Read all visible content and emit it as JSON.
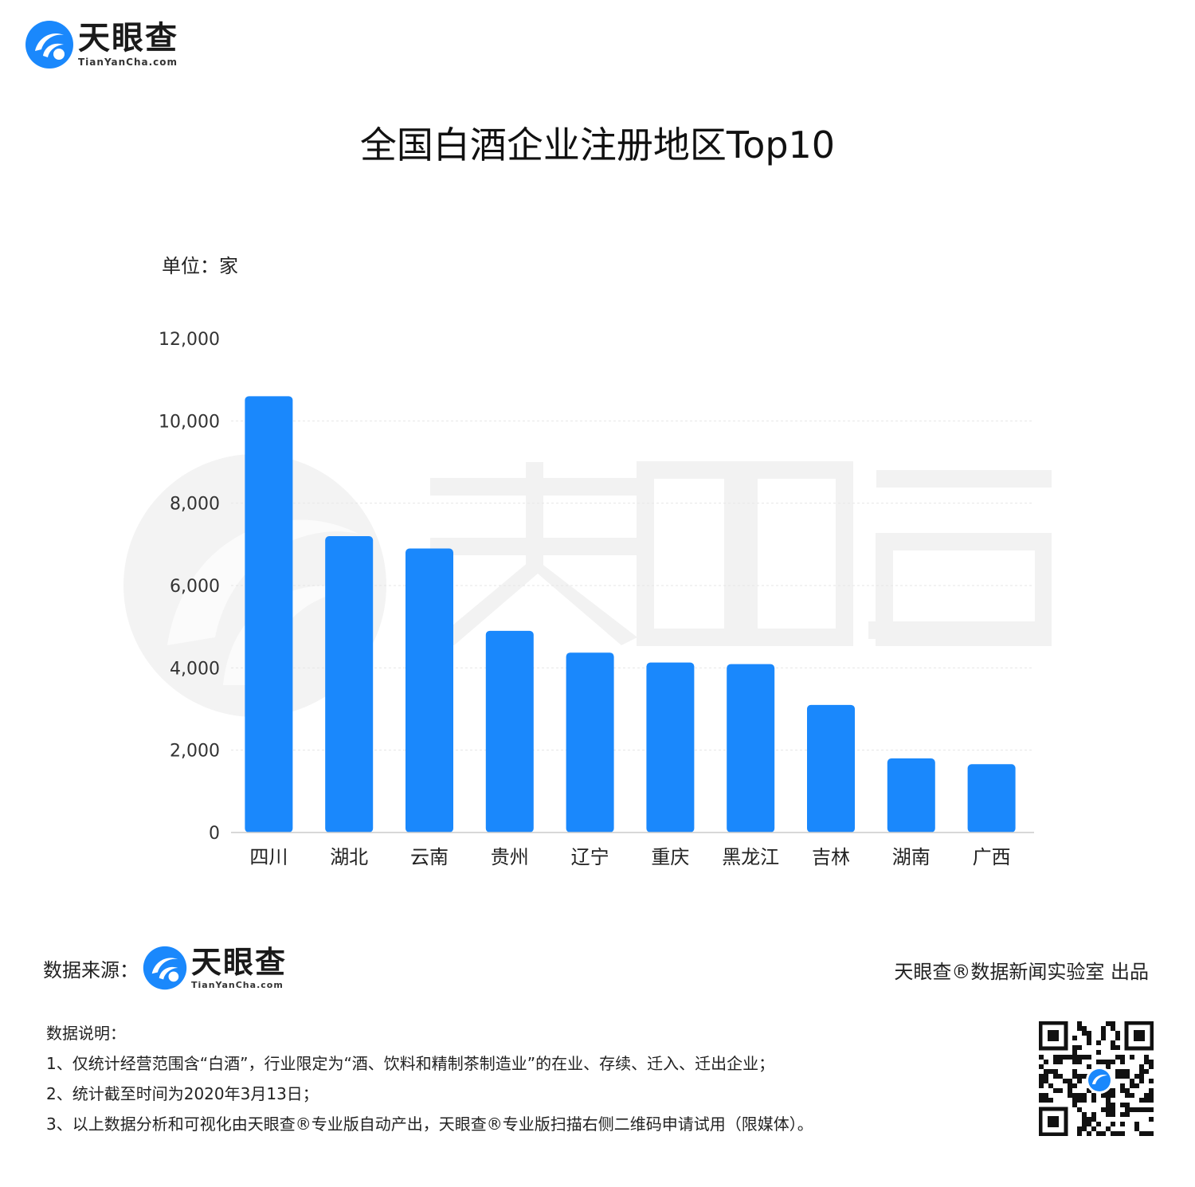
{
  "brand": {
    "name": "天眼查",
    "url": "TianYanCha.com"
  },
  "title": "全国白酒企业注册地区Top10",
  "chart_data": {
    "type": "bar",
    "title": "全国白酒企业注册地区Top10",
    "unit_label": "单位：家",
    "categories": [
      "四川",
      "湖北",
      "云南",
      "贵州",
      "辽宁",
      "重庆",
      "黑龙江",
      "吉林",
      "湖南",
      "广西"
    ],
    "values": [
      10600,
      7200,
      6900,
      4900,
      4370,
      4130,
      4090,
      3100,
      1800,
      1660
    ],
    "yticks": [
      0,
      2000,
      4000,
      6000,
      8000,
      10000,
      12000
    ],
    "ytick_labels": [
      "0",
      "2,000",
      "4,000",
      "6,000",
      "8,000",
      "10,000",
      "12,000"
    ],
    "ylim": [
      0,
      12000
    ],
    "grid": true,
    "bar_color": "#1a88fc"
  },
  "footer": {
    "source_label": "数据来源：",
    "producer": "天眼查®数据新闻实验室 出品",
    "notes": [
      "数据说明：",
      "1、仅统计经营范围含“白酒”，行业限定为“酒、饮料和精制茶制造业”的在业、存续、迁入、迁出企业；",
      "2、统计截至时间为2020年3月13日；",
      "3、以上数据分析和可视化由天眼查®专业版自动产出，天眼查®专业版扫描右侧二维码申请试用（限媒体）。"
    ]
  }
}
